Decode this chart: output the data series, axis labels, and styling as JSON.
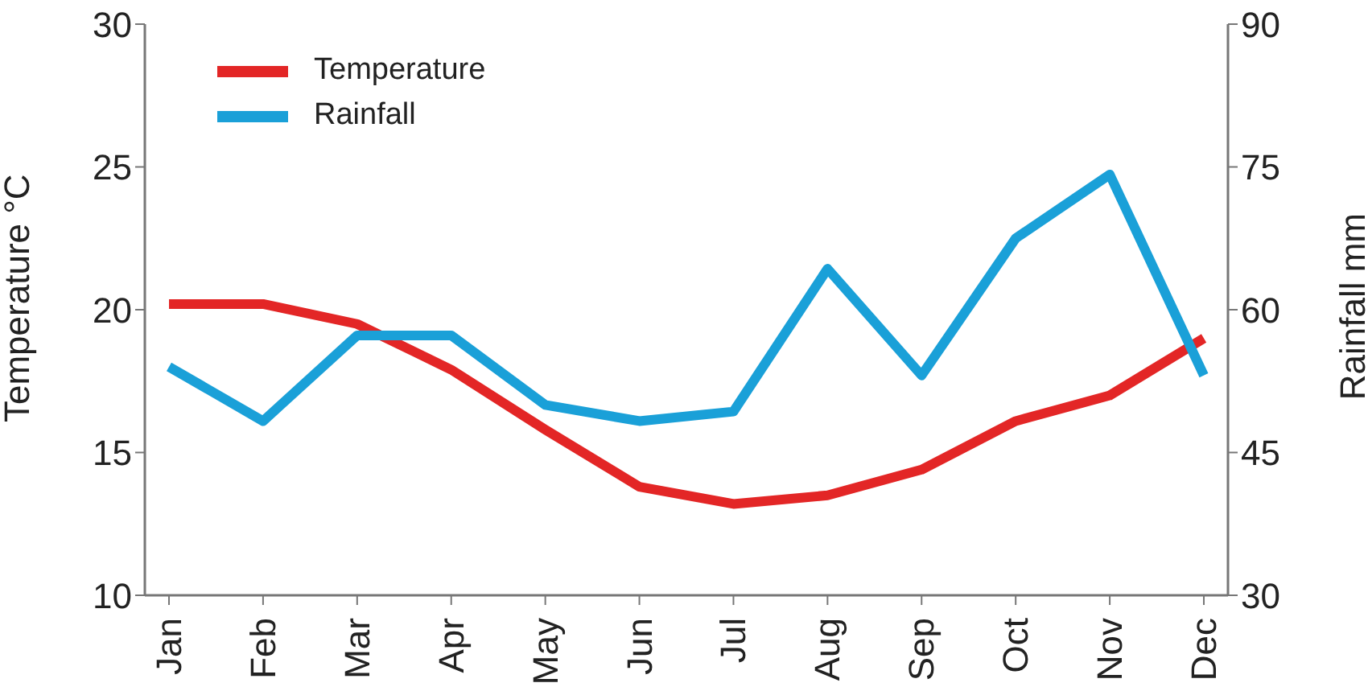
{
  "chart_data": {
    "type": "line",
    "categories": [
      "Jan",
      "Feb",
      "Mar",
      "Apr",
      "May",
      "Jun",
      "Jul",
      "Aug",
      "Sep",
      "Oct",
      "Nov",
      "Dec"
    ],
    "ylabel": "Temperature °C",
    "y2label": "Rainfall mm",
    "ylim": [
      10,
      30
    ],
    "yticks": [
      10,
      15,
      20,
      25,
      30
    ],
    "y2lim": [
      30,
      90
    ],
    "y2ticks": [
      30,
      45,
      60,
      75,
      90
    ],
    "series": [
      {
        "name": "Temperature",
        "color": "#e32626",
        "values": [
          20.2,
          20.2,
          19.5,
          17.9,
          15.8,
          13.8,
          13.2,
          13.5,
          14.4,
          16.1,
          17.0,
          19.0
        ]
      },
      {
        "name": "Rainfall",
        "color": "#1aa0d8",
        "axis": "y2",
        "values": [
          54,
          48.3,
          57.3,
          57.3,
          50,
          48.3,
          49.3,
          64.3,
          53.1,
          67.5,
          74.2,
          53.1
        ]
      }
    ],
    "grid": false,
    "legend": "top left",
    "marker": "none",
    "line_style": "solid"
  }
}
